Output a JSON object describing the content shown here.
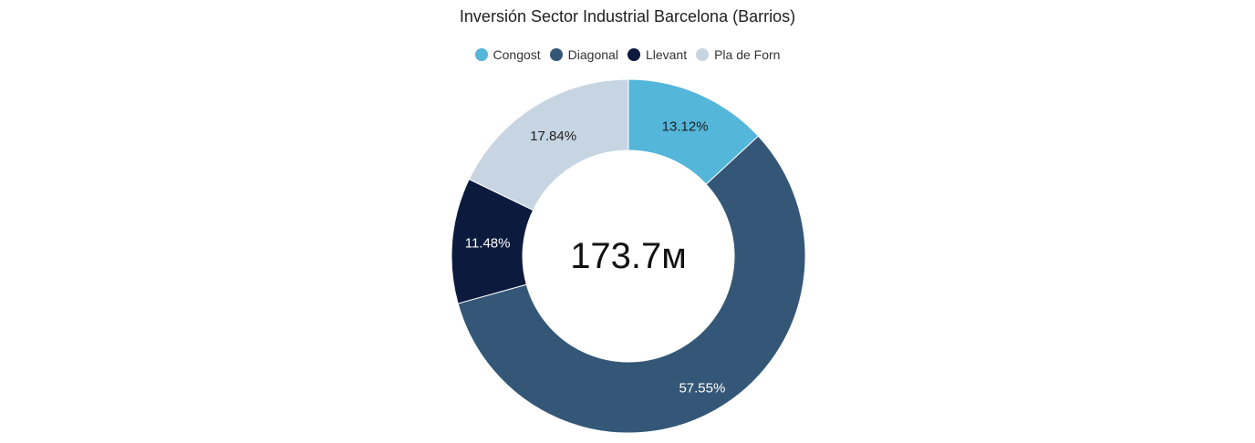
{
  "chart_data": {
    "type": "pie",
    "title": "Inversión Sector Industrial Barcelona (Barrios)",
    "center_label": "173.7м",
    "legend_position": "top",
    "slices": [
      {
        "name": "Congost",
        "percent": 13.12,
        "label": "13.12%",
        "color": "#54b6d9",
        "label_color": "#212121"
      },
      {
        "name": "Diagonal",
        "percent": 57.55,
        "label": "57.55%",
        "color": "#345777",
        "label_color": "#ffffff"
      },
      {
        "name": "Llevant",
        "percent": 11.48,
        "label": "11.48%",
        "color": "#0c1a3d",
        "label_color": "#ffffff"
      },
      {
        "name": "Pla de Forn",
        "percent": 17.84,
        "label": "17.84%",
        "color": "#c7d5e2",
        "label_color": "#212121"
      }
    ]
  }
}
